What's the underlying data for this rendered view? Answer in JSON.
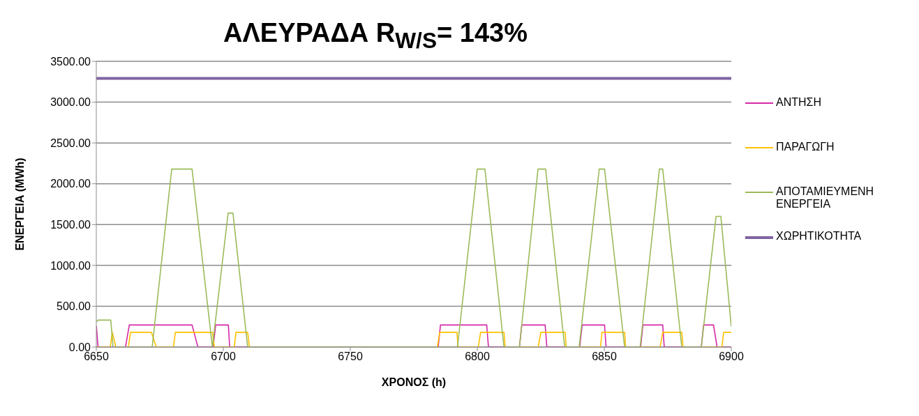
{
  "chart_data": {
    "type": "line",
    "title": "ΑΛΕΥΡΑΔΑ R$_{W/S}$= 143%",
    "xlabel": "ΧΡΟΝΟΣ (h)",
    "ylabel": "ΕΝΕΡΓΕΙΑ (MWh)",
    "xlim": [
      6650,
      6900
    ],
    "xticks": [
      6650,
      6700,
      6750,
      6800,
      6850,
      6900
    ],
    "ylim": [
      0,
      3500
    ],
    "yticks": [
      {
        "value": 0,
        "label": "0.00"
      },
      {
        "value": 500,
        "label": "500.00"
      },
      {
        "value": 1000,
        "label": "1000.00"
      },
      {
        "value": 1500,
        "label": "1500.00"
      },
      {
        "value": 2000,
        "label": "2000.00"
      },
      {
        "value": 2500,
        "label": "2500.00"
      },
      {
        "value": 3000,
        "label": "3000.00"
      },
      {
        "value": 3500,
        "label": "3500.00"
      }
    ],
    "grid": "y",
    "legend": "right",
    "marker": "none",
    "line_style": "solid",
    "series": [
      {
        "name": "ΑΝΤΗΣΗ",
        "color": "#d62aa8",
        "x": [
          6650,
          6650.7,
          6661.5,
          6663,
          6687.7,
          6690,
          6696,
          6697,
          6702,
          6702.5,
          6784.6,
          6785.5,
          6803.7,
          6804.4,
          6816.6,
          6817.5,
          6826.7,
          6827.4,
          6840.3,
          6841.3,
          6850.1,
          6850.7,
          6864.3,
          6865.2,
          6873,
          6873.6,
          6888.2,
          6889.1,
          6893,
          6894.4,
          6900
        ],
        "values": [
          260,
          0,
          0,
          270,
          270,
          0,
          0,
          270,
          270,
          0,
          0,
          270,
          270,
          0,
          0,
          270,
          270,
          0,
          0,
          270,
          270,
          0,
          0,
          270,
          270,
          0,
          0,
          270,
          270,
          0,
          0
        ]
      },
      {
        "name": "ΠΑΡΑΓΩΓΗ",
        "color": "#ffc000",
        "x": [
          6650,
          6655.5,
          6656.3,
          6657.7,
          6662.6,
          6663.5,
          6671.7,
          6673.6,
          6680.4,
          6681.1,
          6695.7,
          6696.5,
          6704.3,
          6705,
          6709.6,
          6710.3,
          6784.3,
          6785.2,
          6792,
          6792.4,
          6800.4,
          6801.3,
          6810.5,
          6811,
          6824,
          6825,
          6834.6,
          6835,
          6848.5,
          6849.1,
          6858,
          6858.4,
          6872,
          6873,
          6880.5,
          6881,
          6896.3,
          6897,
          6900
        ],
        "values": [
          0,
          0,
          180,
          0,
          0,
          180,
          180,
          0,
          0,
          180,
          180,
          0,
          0,
          180,
          180,
          0,
          0,
          180,
          180,
          0,
          0,
          180,
          180,
          0,
          0,
          180,
          180,
          0,
          0,
          180,
          180,
          0,
          0,
          180,
          180,
          0,
          0,
          180,
          180
        ]
      },
      {
        "name": "ΑΠΟΤΑΜΙΕΥΜΕΝΗ ΕΝΕΡΓΕΙΑ",
        "color": "#9bbb59",
        "x": [
          6650,
          6650.7,
          6655.7,
          6656.6,
          6672,
          6679.7,
          6687.7,
          6695.7,
          6701.9,
          6703.8,
          6709.6,
          6792.2,
          6800,
          6803,
          6810.5,
          6816.6,
          6823.9,
          6826.9,
          6834.4,
          6840.1,
          6848,
          6850.1,
          6858,
          6864.1,
          6871.7,
          6873,
          6880.5,
          6888.2,
          6894,
          6895.9,
          6900
        ],
        "values": [
          310,
          330,
          330,
          0,
          0,
          2180,
          2180,
          0,
          1640,
          1640,
          0,
          0,
          2180,
          2180,
          0,
          0,
          2180,
          2180,
          0,
          0,
          2180,
          2180,
          0,
          0,
          2180,
          2180,
          0,
          0,
          1600,
          1600,
          250
        ]
      },
      {
        "name": "ΧΩΡΗΤΙΚΟΤΗΤΑ",
        "color": "#8064a2",
        "x": [
          6650,
          6900
        ],
        "values": [
          3290,
          3290
        ]
      }
    ]
  }
}
